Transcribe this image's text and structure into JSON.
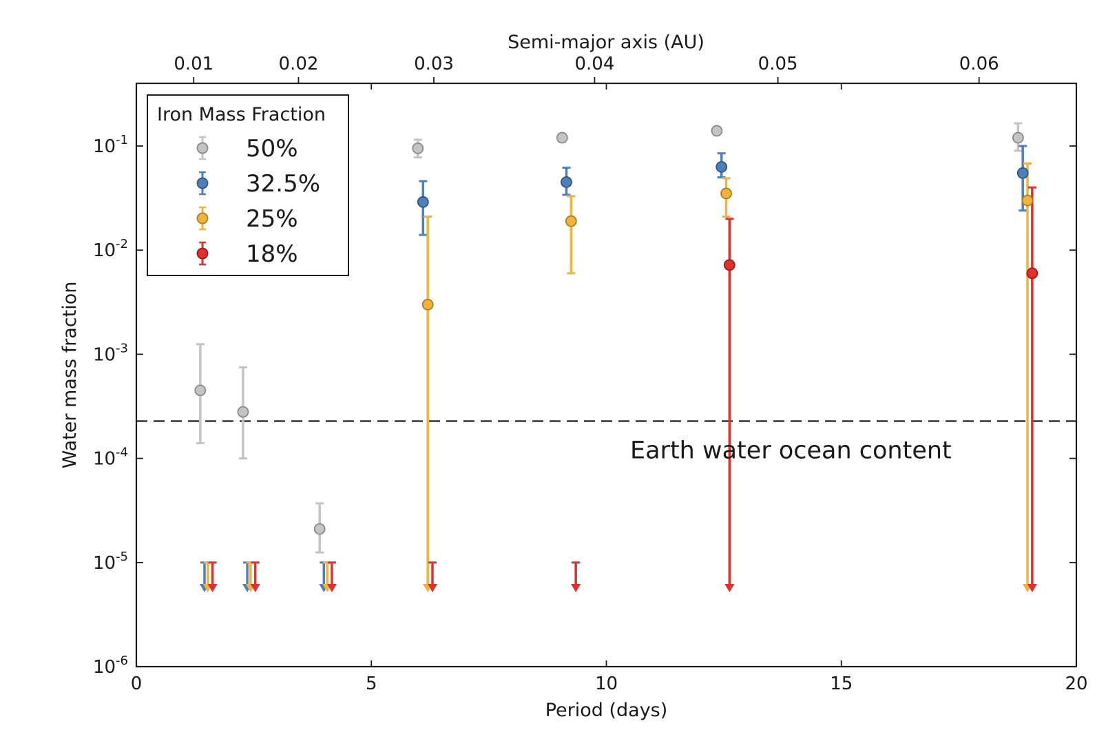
{
  "chart_data": {
    "type": "scatter",
    "xlabel": "Period (days)",
    "ylabel": "Water mass fraction",
    "x_top_label": "Semi-major axis (AU)",
    "xlim": [
      0,
      20
    ],
    "ylim": [
      1e-06,
      0.4
    ],
    "y_scale": "log",
    "x_ticks": [
      "0",
      "5",
      "10",
      "15",
      "20"
    ],
    "y_ticks": [
      {
        "base": "10",
        "exp": "-6"
      },
      {
        "base": "10",
        "exp": "-5"
      },
      {
        "base": "10",
        "exp": "-4"
      },
      {
        "base": "10",
        "exp": "-3"
      },
      {
        "base": "10",
        "exp": "-2"
      },
      {
        "base": "10",
        "exp": "-1"
      }
    ],
    "top_ticks": [
      {
        "label": "0.01",
        "period": 1.22
      },
      {
        "label": "0.02",
        "period": 3.45
      },
      {
        "label": "0.03",
        "period": 6.33
      },
      {
        "label": "0.04",
        "period": 9.75
      },
      {
        "label": "0.05",
        "period": 13.65
      },
      {
        "label": "0.06",
        "period": 17.93
      }
    ],
    "legend": {
      "title": "Iron Mass Fraction",
      "position": "top-left"
    },
    "annotation": {
      "text": "Earth water ocean content",
      "y": 0.000228
    },
    "upper_limit_value": 1e-05,
    "series": [
      {
        "name": "50%",
        "color": "#c4c4c4",
        "edge": "#8a8a8a",
        "points": [
          {
            "x": 1.36,
            "y": 0.00045,
            "lo": 0.00014,
            "hi": 0.00125
          },
          {
            "x": 2.27,
            "y": 0.00028,
            "lo": 0.0001,
            "hi": 0.00075
          },
          {
            "x": 3.9,
            "y": 2.1e-05,
            "lo": 1.25e-05,
            "hi": 3.7e-05
          },
          {
            "x": 5.99,
            "y": 0.095,
            "lo": 0.078,
            "hi": 0.115
          },
          {
            "x": 9.06,
            "y": 0.12,
            "lo": 0.11,
            "hi": 0.13
          },
          {
            "x": 12.35,
            "y": 0.14,
            "lo": 0.13,
            "hi": 0.15
          },
          {
            "x": 18.76,
            "y": 0.12,
            "lo": 0.09,
            "hi": 0.165
          }
        ],
        "limits": []
      },
      {
        "name": "32.5%",
        "color": "#4f7fb7",
        "edge": "#2f5686",
        "points": [
          {
            "x": 6.1,
            "y": 0.029,
            "lo": 0.014,
            "hi": 0.046
          },
          {
            "x": 9.15,
            "y": 0.045,
            "lo": 0.034,
            "hi": 0.062
          },
          {
            "x": 12.45,
            "y": 0.063,
            "lo": 0.05,
            "hi": 0.085
          },
          {
            "x": 18.86,
            "y": 0.055,
            "lo": 0.024,
            "hi": 0.1
          }
        ],
        "limits": [
          1.45,
          2.36,
          3.99
        ]
      },
      {
        "name": "25%",
        "color": "#f0b340",
        "edge": "#b07d18",
        "points": [
          {
            "x": 6.2,
            "y": 0.003,
            "lo": null,
            "hi": 0.021
          },
          {
            "x": 9.25,
            "y": 0.019,
            "lo": 0.006,
            "hi": 0.033
          },
          {
            "x": 12.55,
            "y": 0.035,
            "lo": 0.021,
            "hi": 0.049
          },
          {
            "x": 18.96,
            "y": 0.03,
            "lo": null,
            "hi": 0.068
          }
        ],
        "limits": [
          1.52,
          2.43,
          4.06
        ]
      },
      {
        "name": "18%",
        "color": "#e03030",
        "edge": "#a01818",
        "points": [
          {
            "x": 12.62,
            "y": 0.0072,
            "lo": null,
            "hi": 0.02
          },
          {
            "x": 19.06,
            "y": 0.006,
            "lo": null,
            "hi": 0.04
          }
        ],
        "limits": [
          1.62,
          2.53,
          4.16,
          6.3,
          9.35
        ]
      }
    ]
  }
}
